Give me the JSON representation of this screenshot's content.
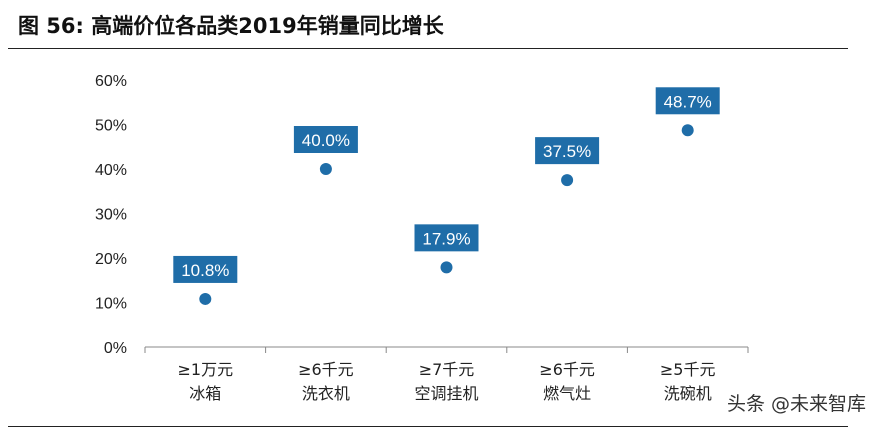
{
  "header": {
    "title": "图 56: 高端价位各品类2019年销量同比增长"
  },
  "watermark": "头条 @未来智库",
  "chart_data": {
    "type": "scatter",
    "title": "",
    "xlabel": "",
    "ylabel": "",
    "ylim": [
      0,
      60
    ],
    "y_ticks": [
      "60%",
      "50%",
      "40%",
      "30%",
      "20%",
      "10%",
      "0%"
    ],
    "y_tick_values": [
      60,
      50,
      40,
      30,
      20,
      10,
      0
    ],
    "grid": false,
    "legend": "none",
    "categories": [
      [
        "≥1万元",
        "冰箱"
      ],
      [
        "≥6千元",
        "洗衣机"
      ],
      [
        "≥7千元",
        "空调挂机"
      ],
      [
        "≥6千元",
        "燃气灶"
      ],
      [
        "≥5千元",
        "洗碗机"
      ]
    ],
    "values": [
      10.8,
      40.0,
      17.9,
      37.5,
      48.7
    ],
    "data_labels": [
      "10.8%",
      "40.0%",
      "17.9%",
      "37.5%",
      "48.7%"
    ],
    "colors": {
      "marker": "#1F6DA8",
      "label_bg": "#1F6DA8",
      "label_text": "#FFFFFF",
      "axis": "#888888"
    }
  }
}
